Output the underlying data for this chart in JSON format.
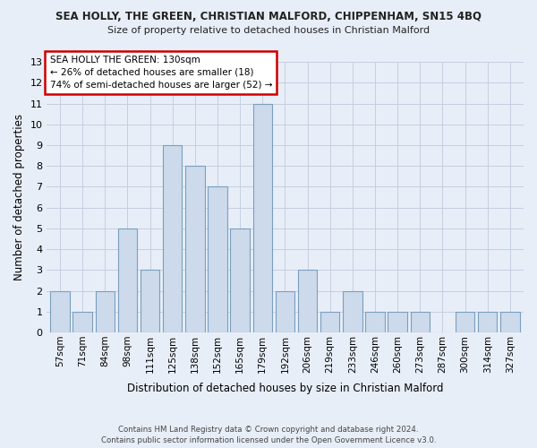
{
  "title1": "SEA HOLLY, THE GREEN, CHRISTIAN MALFORD, CHIPPENHAM, SN15 4BQ",
  "title2": "Size of property relative to detached houses in Christian Malford",
  "xlabel": "Distribution of detached houses by size in Christian Malford",
  "ylabel": "Number of detached properties",
  "categories": [
    "57sqm",
    "71sqm",
    "84sqm",
    "98sqm",
    "111sqm",
    "125sqm",
    "138sqm",
    "152sqm",
    "165sqm",
    "179sqm",
    "192sqm",
    "206sqm",
    "219sqm",
    "233sqm",
    "246sqm",
    "260sqm",
    "273sqm",
    "287sqm",
    "300sqm",
    "314sqm",
    "327sqm"
  ],
  "values": [
    2,
    1,
    2,
    5,
    3,
    9,
    8,
    7,
    5,
    11,
    2,
    3,
    1,
    2,
    1,
    1,
    1,
    0,
    1,
    1,
    1
  ],
  "annotation_text": "SEA HOLLY THE GREEN: 130sqm\n← 26% of detached houses are smaller (18)\n74% of semi-detached houses are larger (52) →",
  "bar_color": "#ccdaeb",
  "bar_edge_color": "#7a9fc0",
  "annotation_box_facecolor": "#ffffff",
  "annotation_box_edgecolor": "#cc0000",
  "grid_color": "#c5cfe0",
  "background_color": "#e8eef8",
  "footer1": "Contains HM Land Registry data © Crown copyright and database right 2024.",
  "footer2": "Contains public sector information licensed under the Open Government Licence v3.0.",
  "ylim": [
    0,
    13
  ],
  "yticks": [
    0,
    1,
    2,
    3,
    4,
    5,
    6,
    7,
    8,
    9,
    10,
    11,
    12,
    13
  ]
}
